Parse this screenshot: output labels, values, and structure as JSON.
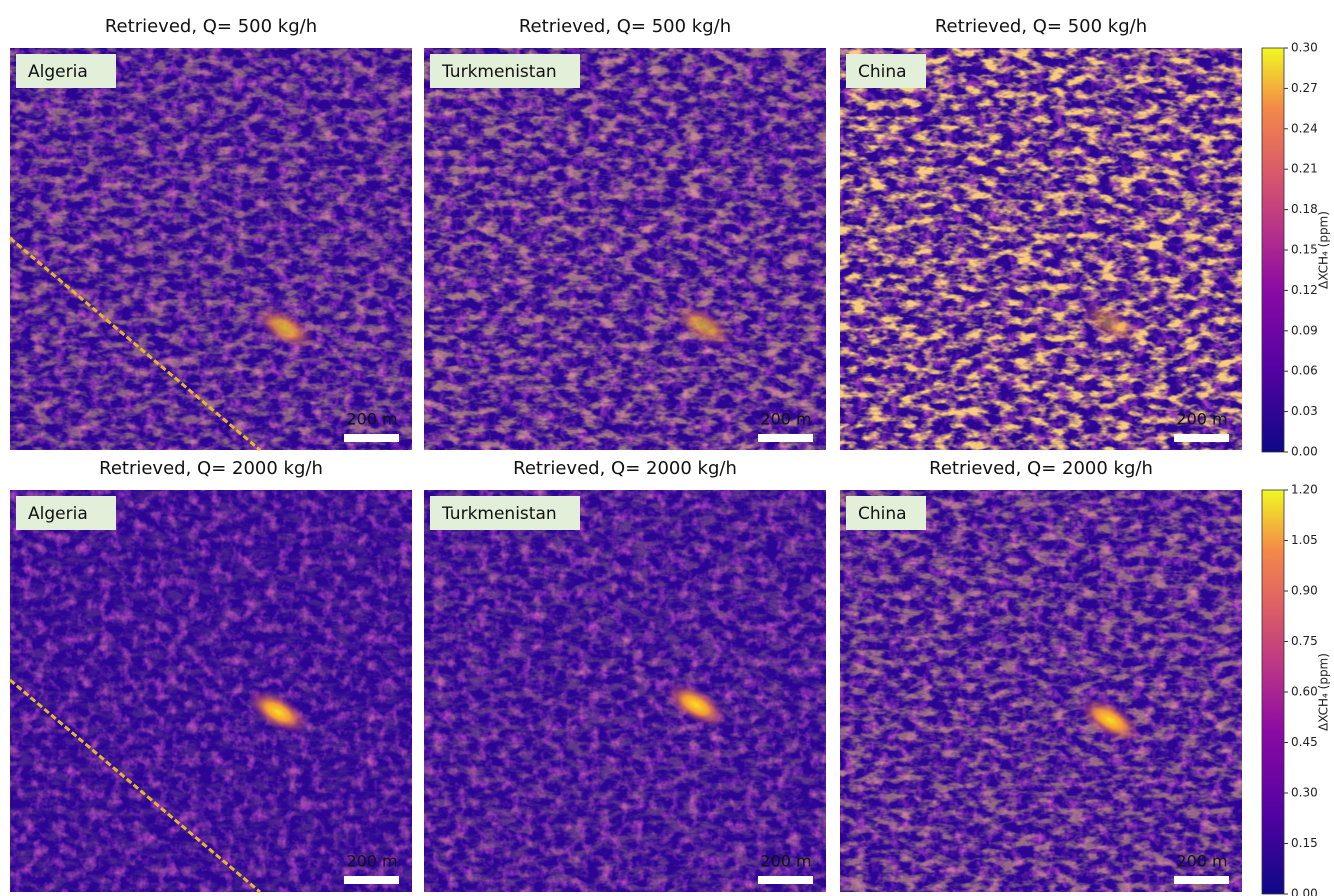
{
  "panels": [
    {
      "title": "Retrieved, Q= 500 kg/h",
      "label": "Algeria",
      "scale": "200 m"
    },
    {
      "title": "Retrieved, Q= 500 kg/h",
      "label": "Turkmenistan",
      "scale": "200 m"
    },
    {
      "title": "Retrieved, Q= 500 kg/h",
      "label": "China",
      "scale": "200 m"
    },
    {
      "title": "Retrieved, Q= 2000 kg/h",
      "label": "Algeria",
      "scale": "200 m"
    },
    {
      "title": "Retrieved, Q= 2000 kg/h",
      "label": "Turkmenistan",
      "scale": "200 m"
    },
    {
      "title": "Retrieved, Q= 2000 kg/h",
      "label": "China",
      "scale": "200 m"
    }
  ],
  "colorbars": [
    {
      "label": "ΔXCH₄ (ppm)",
      "lim": [
        0,
        0.3
      ],
      "ticks": [
        {
          "value": 0,
          "label": "0.00"
        },
        {
          "value": 0.03,
          "label": "0.03"
        },
        {
          "value": 0.06,
          "label": "0.06"
        },
        {
          "value": 0.09,
          "label": "0.09"
        },
        {
          "value": 0.12,
          "label": "0.12"
        },
        {
          "value": 0.15,
          "label": "0.15"
        },
        {
          "value": 0.18,
          "label": "0.18"
        },
        {
          "value": 0.21,
          "label": "0.21"
        },
        {
          "value": 0.24,
          "label": "0.24"
        },
        {
          "value": 0.27,
          "label": "0.27"
        },
        {
          "value": 0.3,
          "label": "0.30"
        }
      ]
    },
    {
      "label": "ΔXCH₄ (ppm)",
      "lim": [
        0,
        1.2
      ],
      "ticks": [
        {
          "value": 0,
          "label": "0.00"
        },
        {
          "value": 0.15,
          "label": "0.15"
        },
        {
          "value": 0.3,
          "label": "0.30"
        },
        {
          "value": 0.45,
          "label": "0.45"
        },
        {
          "value": 0.6,
          "label": "0.60"
        },
        {
          "value": 0.75,
          "label": "0.75"
        },
        {
          "value": 0.9,
          "label": "0.90"
        },
        {
          "value": 1.05,
          "label": "1.05"
        },
        {
          "value": 1.2,
          "label": "1.20"
        }
      ]
    }
  ]
}
